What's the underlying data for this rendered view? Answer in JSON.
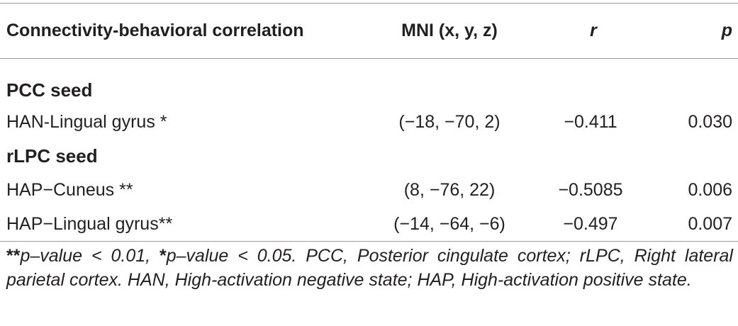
{
  "table": {
    "headers": {
      "label": "Connectivity-behavioral correlation",
      "mni": "MNI (x, y, z)",
      "r": "r",
      "p": "p"
    },
    "sections": [
      {
        "title": "PCC seed",
        "rows": [
          {
            "label": "HAN-Lingual gyrus *",
            "mni": "(−18, −70, 2)",
            "r": "−0.411",
            "p": "0.030"
          }
        ]
      },
      {
        "title": "rLPC seed",
        "rows": [
          {
            "label": "HAP−Cuneus **",
            "mni": "(8, −76, 22)",
            "r": "−0.5085",
            "p": "0.006"
          },
          {
            "label": "HAP−Lingual gyrus**",
            "mni": "(−14, −64, −6)",
            "r": "−0.497",
            "p": "0.007"
          }
        ]
      }
    ]
  },
  "footnote": {
    "mark1": "**",
    "text1": "p–value < 0.01, ",
    "mark2": "*",
    "text2": "p–value < 0.05. PCC, Posterior cingulate cortex; rLPC, Right lateral parietal cortex. HAN, High-activation negative state; HAP, High-activation positive state."
  }
}
